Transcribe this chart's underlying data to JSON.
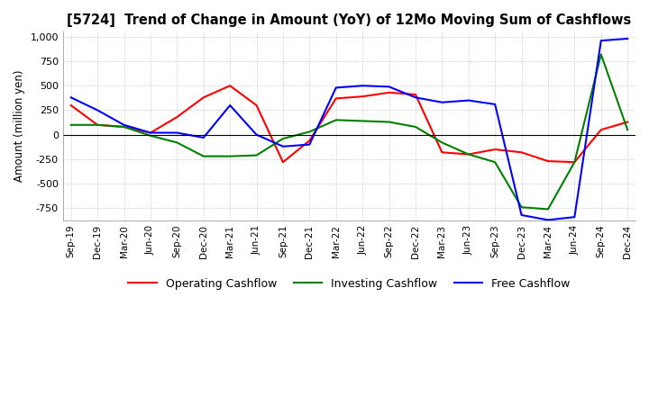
{
  "title": "[5724]  Trend of Change in Amount (YoY) of 12Mo Moving Sum of Cashflows",
  "ylabel": "Amount (million yen)",
  "ylim": [
    -875,
    1050
  ],
  "yticks": [
    -750,
    -500,
    -250,
    0,
    250,
    500,
    750,
    1000
  ],
  "background_color": "#ffffff",
  "grid_color": "#aaaaaa",
  "legend_labels": [
    "Operating Cashflow",
    "Investing Cashflow",
    "Free Cashflow"
  ],
  "legend_colors": [
    "#ff0000",
    "#008000",
    "#0000ff"
  ],
  "x_labels": [
    "Sep-19",
    "Dec-19",
    "Mar-20",
    "Jun-20",
    "Sep-20",
    "Dec-20",
    "Mar-21",
    "Jun-21",
    "Sep-21",
    "Dec-21",
    "Mar-22",
    "Jun-22",
    "Sep-22",
    "Dec-22",
    "Mar-23",
    "Jun-23",
    "Sep-23",
    "Dec-23",
    "Mar-24",
    "Jun-24",
    "Sep-24",
    "Dec-24"
  ],
  "operating": [
    300,
    100,
    80,
    20,
    180,
    380,
    500,
    300,
    -280,
    -60,
    370,
    390,
    430,
    410,
    -180,
    -200,
    -150,
    -180,
    -270,
    -280,
    50,
    130
  ],
  "investing": [
    100,
    100,
    80,
    -10,
    -80,
    -220,
    -220,
    -210,
    -40,
    30,
    150,
    140,
    130,
    80,
    -80,
    -200,
    -280,
    -740,
    -760,
    -280,
    820,
    50
  ],
  "free": [
    380,
    250,
    100,
    20,
    20,
    -30,
    300,
    0,
    -120,
    -100,
    480,
    500,
    490,
    380,
    330,
    350,
    310,
    -820,
    -870,
    -840,
    960,
    980
  ]
}
